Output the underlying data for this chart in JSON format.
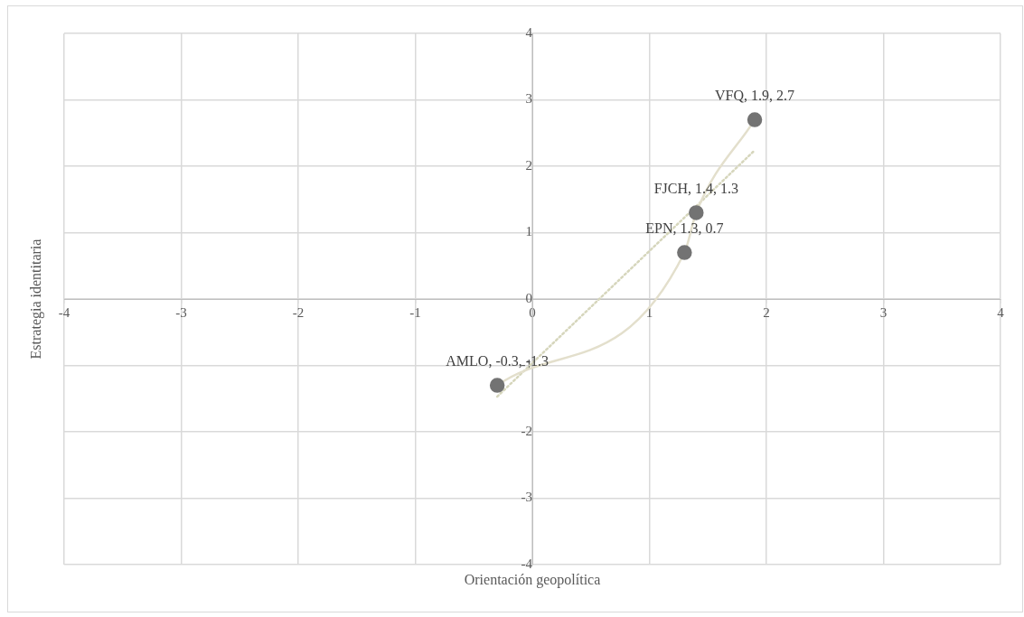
{
  "chart_data": {
    "type": "scatter",
    "xlabel": "Orientación geopolítica",
    "ylabel": "Estrategia identitaria",
    "xlim": [
      -4,
      4
    ],
    "ylim": [
      -4,
      4
    ],
    "xticks": [
      -4,
      -3,
      -2,
      -1,
      0,
      1,
      2,
      3,
      4
    ],
    "yticks": [
      -4,
      -3,
      -2,
      -1,
      0,
      1,
      2,
      3,
      4
    ],
    "grid": true,
    "series": [
      {
        "type": "scatter",
        "x": [
          -0.3,
          1.3,
          1.4,
          1.9
        ],
        "values": [
          -1.3,
          0.7,
          1.3,
          2.7
        ],
        "color": "#737373",
        "marker": "circle"
      },
      {
        "type": "line",
        "x": [
          -0.3,
          1.3,
          1.4,
          1.9
        ],
        "values": [
          -1.3,
          0.7,
          1.3,
          2.7
        ],
        "color": "#e3dfcc",
        "marker": "none",
        "line_style": "solid"
      },
      {
        "type": "line",
        "x": [
          -0.3,
          1.9
        ],
        "values": [
          -1.47,
          2.24
        ],
        "color": "#d6d6bc",
        "marker": "none",
        "line_style": "dotted"
      }
    ],
    "annotations": [
      {
        "text": "AMLO, -0.3, -1.3",
        "x": -0.3,
        "y": -1.3
      },
      {
        "text": "EPN, 1.3, 0.7",
        "x": 1.3,
        "y": 0.7
      },
      {
        "text": "FJCH, 1.4, 1.3",
        "x": 1.4,
        "y": 1.3
      },
      {
        "text": "VFQ, 1.9, 2.7",
        "x": 1.9,
        "y": 2.7
      }
    ]
  }
}
